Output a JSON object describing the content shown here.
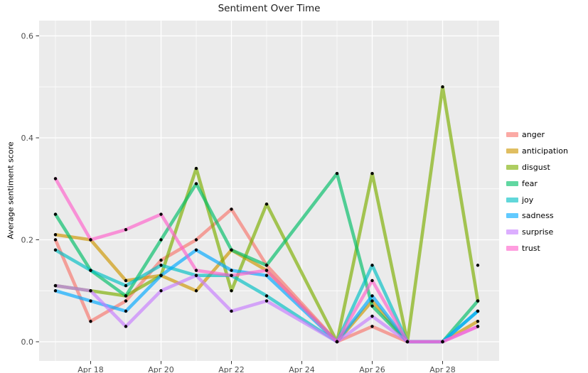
{
  "chart_data": {
    "type": "line",
    "title": "Sentiment Over Time",
    "xlabel": "",
    "ylabel": "Average sentiment score",
    "legend_position": "right",
    "panel_color": "#EBEBEB",
    "grid_color": "#FFFFFF",
    "point_color": "#000000",
    "axis_text_color": "#4D4D4D",
    "x_axis": {
      "tick_labels": [
        "Apr 18",
        "Apr 20",
        "Apr 22",
        "Apr 24",
        "Apr 26",
        "Apr 28"
      ],
      "major_tick_days": [
        1,
        3,
        5,
        7,
        9,
        11
      ],
      "minor_grid_days": [
        0,
        2,
        4,
        6,
        8,
        10,
        12
      ]
    },
    "y_axis": {
      "tick_labels": [
        "0.0",
        "0.2",
        "0.4",
        "0.6"
      ],
      "major_ticks": [
        0.0,
        0.2,
        0.4,
        0.6
      ],
      "minor_ticks": [
        0.1,
        0.3,
        0.5
      ],
      "ylim": [
        -0.038,
        0.63
      ]
    },
    "x_categories": [
      "Apr 17",
      "Apr 18",
      "Apr 19",
      "Apr 20",
      "Apr 21",
      "Apr 22",
      "Apr 23",
      "Apr 25",
      "Apr 26",
      "Apr 27",
      "Apr 28",
      "Apr 29"
    ],
    "x_day_offsets": [
      0,
      1,
      2,
      3,
      4,
      5,
      6,
      8,
      9,
      10,
      11,
      12
    ],
    "series": [
      {
        "name": "anger",
        "color": "#F8766D",
        "values": [
          0.2,
          0.04,
          0.08,
          0.16,
          0.2,
          0.26,
          0.15,
          0.0,
          0.03,
          0.0,
          null,
          0.15
        ]
      },
      {
        "name": "anticipation",
        "color": "#CD9600",
        "values": [
          0.21,
          0.2,
          0.12,
          0.13,
          0.1,
          0.18,
          0.14,
          0.0,
          0.08,
          0.0,
          0.0,
          0.04
        ]
      },
      {
        "name": "disgust",
        "color": "#7CAE00",
        "values": [
          0.11,
          0.1,
          0.09,
          0.13,
          0.34,
          0.1,
          0.27,
          0.0,
          0.33,
          0.0,
          0.5,
          0.08
        ]
      },
      {
        "name": "fear",
        "color": "#00BE67",
        "values": [
          0.25,
          0.14,
          0.09,
          0.2,
          0.31,
          0.18,
          0.15,
          0.33,
          0.07,
          0.0,
          0.0,
          0.08
        ]
      },
      {
        "name": "joy",
        "color": "#00BFC4",
        "values": [
          0.18,
          0.14,
          0.11,
          0.15,
          0.13,
          0.13,
          0.09,
          0.0,
          0.15,
          0.0,
          0.0,
          0.06
        ]
      },
      {
        "name": "sadness",
        "color": "#00A9FF",
        "values": [
          0.1,
          0.08,
          0.06,
          0.13,
          0.18,
          0.14,
          0.13,
          0.0,
          0.09,
          0.0,
          0.0,
          0.06
        ]
      },
      {
        "name": "surprise",
        "color": "#C77CFF",
        "values": [
          0.11,
          0.1,
          0.03,
          0.1,
          0.13,
          0.06,
          0.08,
          0.0,
          0.05,
          0.0,
          0.0,
          0.03
        ]
      },
      {
        "name": "trust",
        "color": "#FF61CC",
        "values": [
          0.32,
          0.2,
          0.22,
          0.25,
          0.14,
          0.13,
          0.14,
          0.0,
          0.12,
          0.0,
          0.0,
          0.03
        ]
      }
    ]
  }
}
